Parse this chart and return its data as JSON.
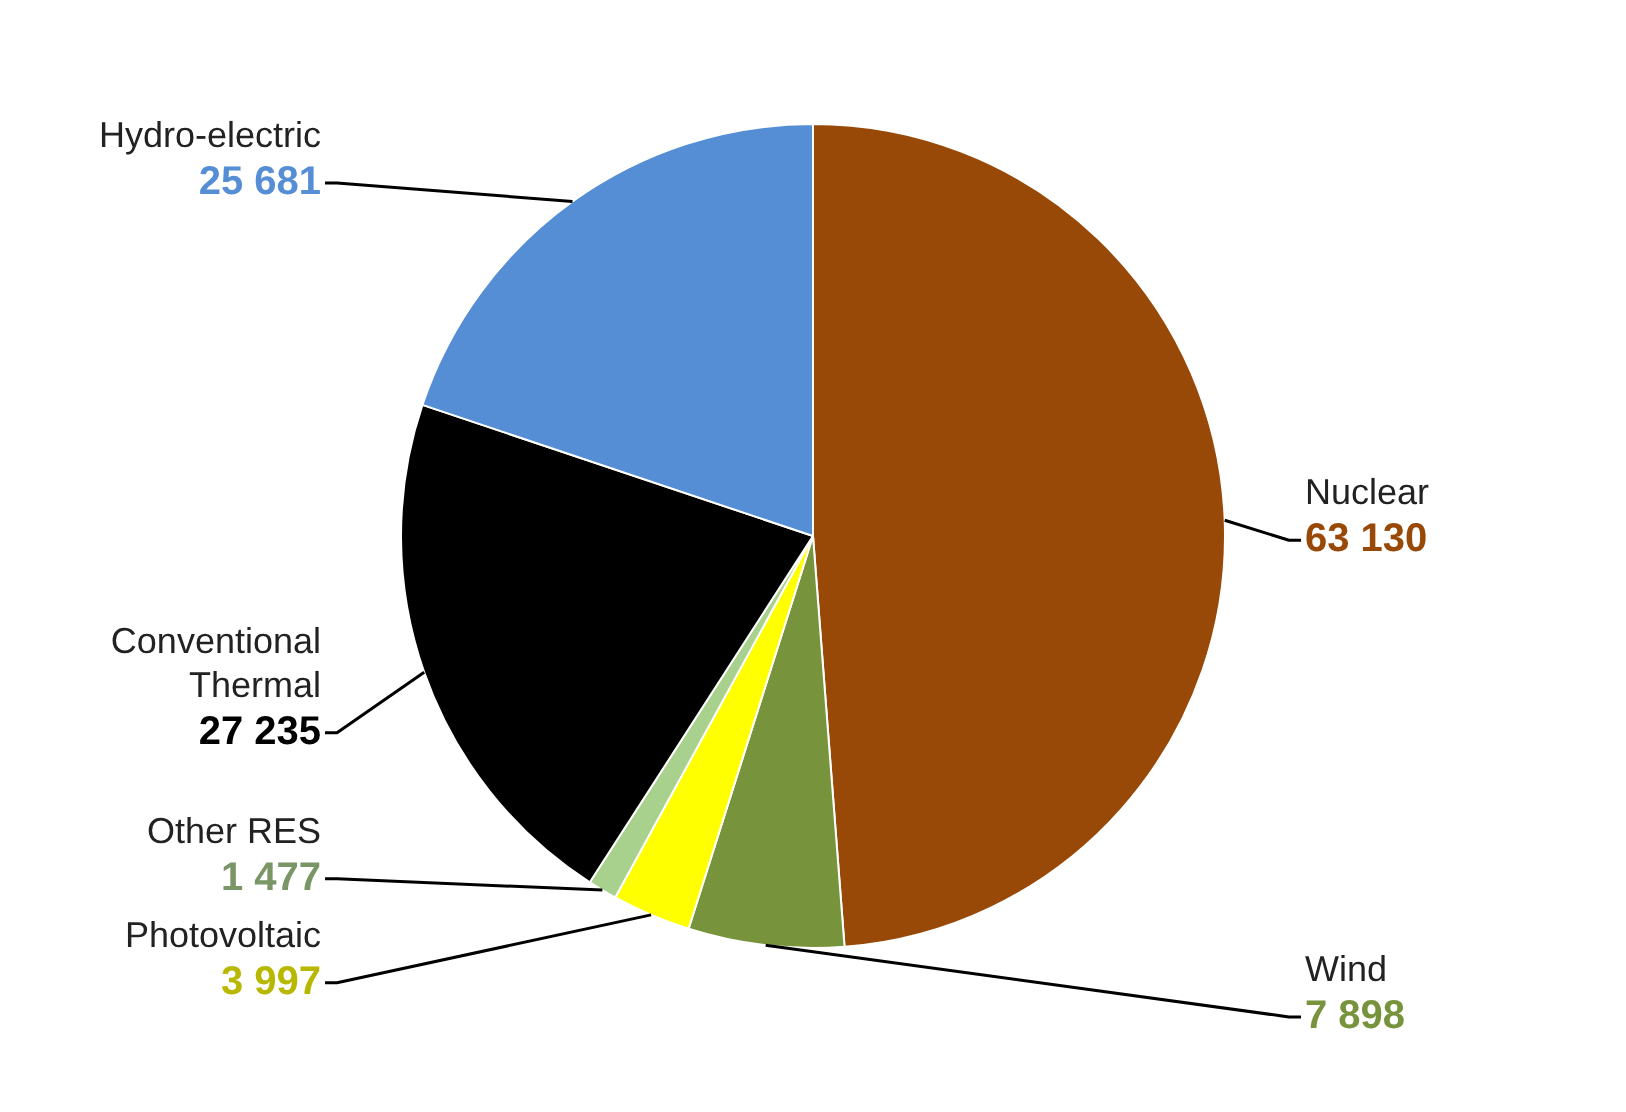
{
  "chart_data": {
    "type": "pie",
    "categories": [
      "Nuclear",
      "Wind",
      "Photovoltaic",
      "Other RES",
      "Conventional Thermal",
      "Hydro-electric"
    ],
    "values": [
      63130,
      7898,
      3997,
      1477,
      27235,
      25681
    ],
    "value_labels": [
      "63 130",
      "7 898",
      "3 997",
      "1 477",
      "27 235",
      "25 681"
    ],
    "colors": [
      "#984807",
      "#77933c",
      "#ffff00",
      "#a9d18e",
      "#000000",
      "#558ed5"
    ],
    "legend": false
  }
}
